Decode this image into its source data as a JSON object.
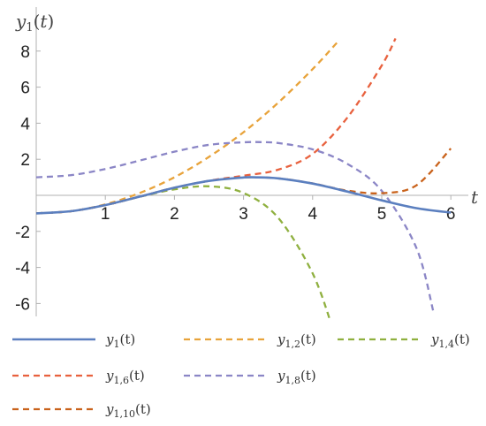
{
  "chart_data": {
    "type": "line",
    "title": "",
    "xlabel": "t",
    "ylabel": "y1(t)",
    "xlim": [
      0,
      6.2
    ],
    "ylim": [
      -6.6,
      8.8
    ],
    "xticks": [
      1,
      2,
      3,
      4,
      5,
      6
    ],
    "xtick_labels": [
      "1",
      "2",
      "3",
      "4",
      "5",
      "6"
    ],
    "yticks": [
      -6,
      -4,
      -2,
      2,
      4,
      6,
      8
    ],
    "ytick_labels": [
      "-6",
      "-4",
      "-2",
      "2",
      "4",
      "6",
      "8"
    ],
    "grid": false,
    "legend_position": "bottom",
    "series": [
      {
        "name": "y1(t)",
        "legend_base": "y",
        "legend_sub": "1",
        "color": "#5B7FBF",
        "dashed": false,
        "x": [
          0.0,
          0.5,
          1.0,
          1.5,
          2.0,
          2.5,
          3.0,
          3.14,
          3.5,
          4.0,
          4.5,
          5.0,
          5.5,
          6.0
        ],
        "y": [
          -1.0,
          -0.88,
          -0.54,
          -0.07,
          0.42,
          0.8,
          0.99,
          1.0,
          0.94,
          0.65,
          0.21,
          -0.28,
          -0.71,
          -0.96
        ]
      },
      {
        "name": "y1,2(t)",
        "legend_base": "y",
        "legend_sub": "1,2",
        "color": "#E8A33B",
        "dashed": true,
        "x": [
          0.0,
          0.5,
          1.0,
          1.5,
          2.0,
          2.5,
          3.0,
          3.5,
          4.0,
          4.35
        ],
        "y": [
          -1.0,
          -0.88,
          -0.5,
          0.13,
          1.0,
          2.13,
          3.5,
          5.13,
          7.0,
          8.46
        ]
      },
      {
        "name": "y1,4(t)",
        "legend_base": "y",
        "legend_sub": "1,4",
        "color": "#8FB03F",
        "dashed": true,
        "x": [
          0.0,
          0.5,
          1.0,
          1.5,
          2.0,
          2.5,
          3.0,
          3.5,
          4.0,
          4.3
        ],
        "y": [
          -1.0,
          -0.88,
          -0.54,
          -0.08,
          0.33,
          0.5,
          0.13,
          -1.24,
          -4.33,
          -7.5
        ]
      },
      {
        "name": "y1,6(t)",
        "legend_base": "y",
        "legend_sub": "1,6",
        "color": "#E8613E",
        "dashed": true,
        "x": [
          0.0,
          0.5,
          1.0,
          1.5,
          2.0,
          2.5,
          3.0,
          3.5,
          4.0,
          4.5,
          5.0,
          5.2
        ],
        "y": [
          -1.0,
          -0.88,
          -0.54,
          -0.07,
          0.42,
          0.81,
          1.09,
          1.42,
          2.3,
          4.3,
          7.2,
          8.7
        ]
      },
      {
        "name": "y1,8(t)",
        "legend_base": "y",
        "legend_sub": "1,8",
        "color": "#8B86C6",
        "dashed": true,
        "x": [
          0.0,
          0.5,
          1.0,
          1.5,
          2.0,
          2.5,
          3.0,
          3.25,
          3.5,
          4.0,
          4.5,
          5.0,
          5.5,
          5.75
        ],
        "y": [
          1.0,
          1.12,
          1.46,
          1.93,
          2.42,
          2.8,
          2.94,
          2.95,
          2.9,
          2.55,
          1.75,
          0.25,
          -2.9,
          -6.5
        ]
      },
      {
        "name": "y1,10(t)",
        "legend_base": "y",
        "legend_sub": "1,10",
        "color": "#C9621B",
        "dashed": true,
        "x": [
          0.0,
          0.5,
          1.0,
          1.5,
          2.0,
          2.5,
          3.0,
          3.5,
          4.0,
          4.5,
          5.0,
          5.5,
          6.0
        ],
        "y": [
          -1.0,
          -0.88,
          -0.54,
          -0.07,
          0.42,
          0.8,
          0.99,
          0.94,
          0.66,
          0.26,
          0.12,
          0.55,
          2.6
        ]
      }
    ]
  }
}
